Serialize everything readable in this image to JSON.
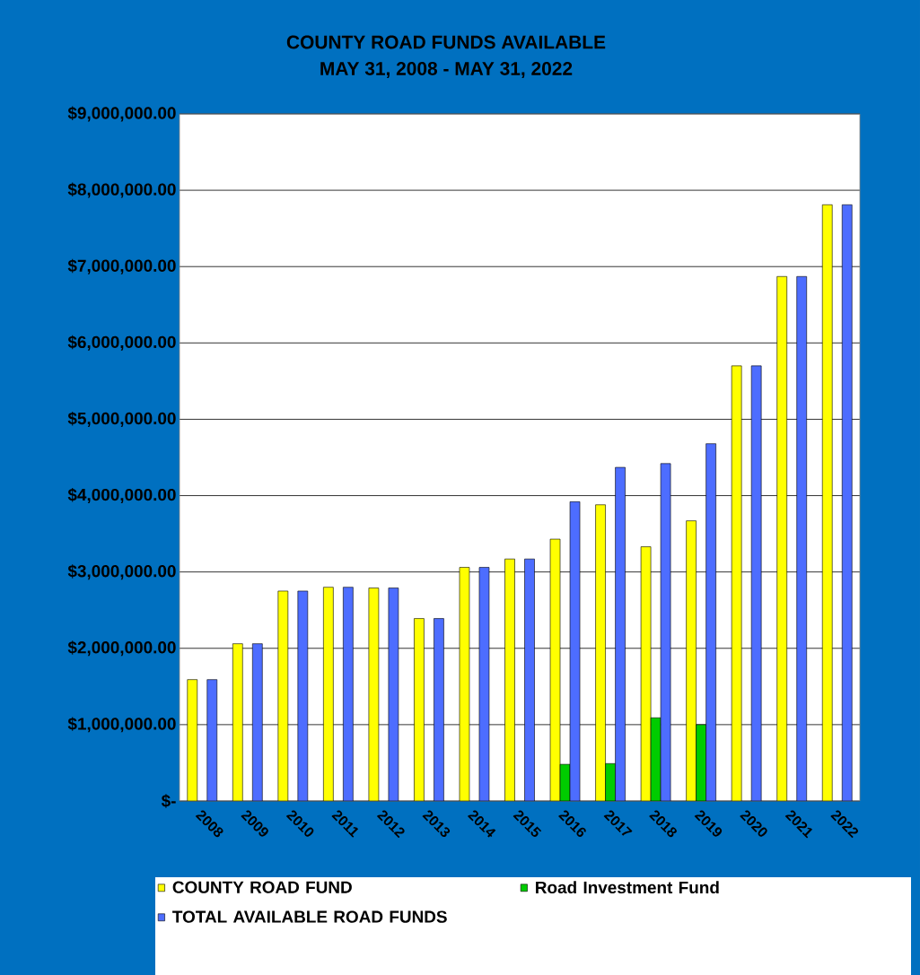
{
  "chart_data": {
    "type": "bar",
    "title": "COUNTY ROAD FUNDS AVAILABLE",
    "subtitle": "MAY 31, 2008 - MAY 31, 2022",
    "categories": [
      "2008",
      "2009",
      "2010",
      "2011",
      "2012",
      "2013",
      "2014",
      "2015",
      "2016",
      "2017",
      "2018",
      "2019",
      "2020",
      "2021",
      "2022"
    ],
    "series": [
      {
        "name": "COUNTY ROAD FUND",
        "color": "#ffff00",
        "values": [
          1590000,
          2060000,
          2750000,
          2800000,
          2790000,
          2390000,
          3060000,
          3170000,
          3430000,
          3880000,
          3330000,
          3670000,
          5700000,
          6870000,
          7810000
        ]
      },
      {
        "name": "Road Investment Fund",
        "color": "#00cc00",
        "values": [
          null,
          null,
          null,
          null,
          null,
          null,
          null,
          null,
          480000,
          490000,
          1090000,
          1000000,
          null,
          null,
          null
        ]
      },
      {
        "name": "TOTAL AVAILABLE ROAD FUNDS",
        "color": "#4d6dff",
        "values": [
          1590000,
          2060000,
          2750000,
          2800000,
          2790000,
          2390000,
          3060000,
          3170000,
          3920000,
          4370000,
          4420000,
          4680000,
          5700000,
          6870000,
          7810000
        ]
      }
    ],
    "ylim": [
      0,
      9000000
    ],
    "yticks": [
      {
        "value": 0,
        "label": "$-"
      },
      {
        "value": 1000000,
        "label": "$1,000,000.00"
      },
      {
        "value": 2000000,
        "label": "$2,000,000.00"
      },
      {
        "value": 3000000,
        "label": "$3,000,000.00"
      },
      {
        "value": 4000000,
        "label": "$4,000,000.00"
      },
      {
        "value": 5000000,
        "label": "$5,000,000.00"
      },
      {
        "value": 6000000,
        "label": "$6,000,000.00"
      },
      {
        "value": 7000000,
        "label": "$7,000,000.00"
      },
      {
        "value": 8000000,
        "label": "$8,000,000.00"
      },
      {
        "value": 9000000,
        "label": "$9,000,000.00"
      }
    ],
    "grid": "y",
    "legend": "bottom"
  }
}
